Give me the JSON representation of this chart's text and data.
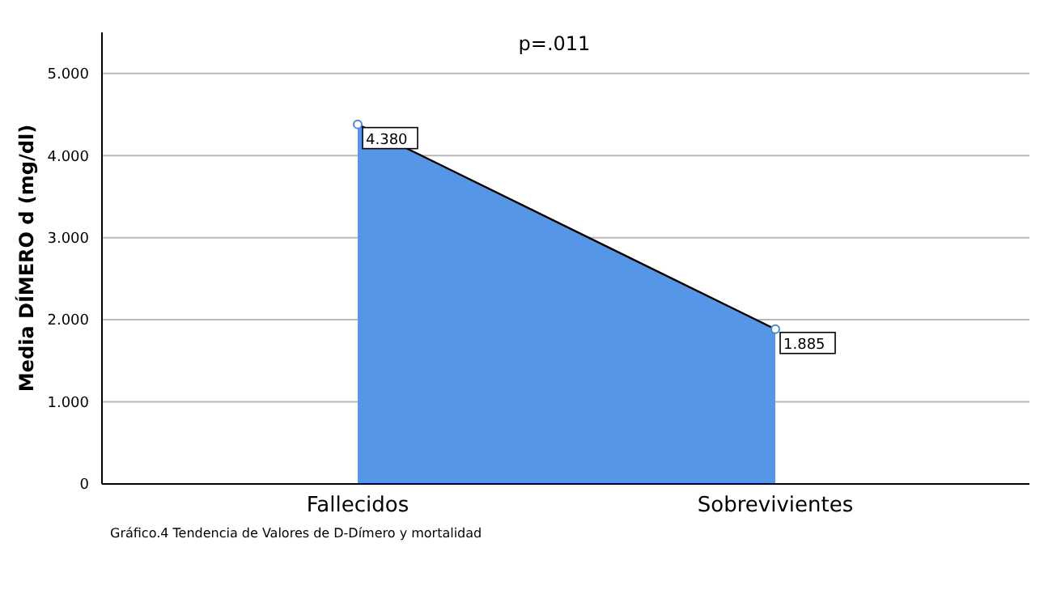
{
  "chart_data": {
    "type": "area",
    "title": "p=.011",
    "ylabel": "Media DÍMERO d    (mg/dl)",
    "annotations": [
      "Gráfico.4 Tendencia de Valores de D-Dímero y mortalidad"
    ],
    "categories": [
      "Fallecidos",
      "Sobrevivientes"
    ],
    "series": [
      {
        "color": "#5596e6",
        "values": [
          4380,
          1885
        ],
        "value_labels": [
          "4.380",
          "1.885"
        ]
      }
    ],
    "ylim": [
      0,
      5500
    ],
    "yticks": [
      0,
      {
        "value": 1000,
        "label": "1.000"
      },
      {
        "value": 2000,
        "label": "2.000"
      },
      {
        "value": 3000,
        "label": "3.000"
      },
      {
        "value": 4000,
        "label": "4.000"
      },
      {
        "value": 5000,
        "label": "5.000"
      }
    ],
    "grid": "y",
    "marker": "circle",
    "legend": false
  }
}
